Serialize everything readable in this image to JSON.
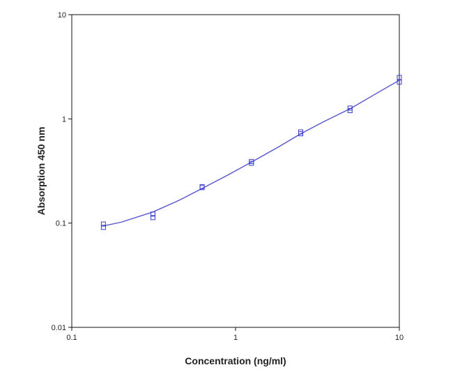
{
  "chart_data": {
    "type": "scatter",
    "scale": {
      "x": "log",
      "y": "log"
    },
    "xlabel": "Concentration (ng/ml)",
    "ylabel": "Absorption 450 nm",
    "xlim": [
      0.1,
      10
    ],
    "ylim": [
      0.01,
      10
    ],
    "x_ticks": [
      {
        "value": 0.1,
        "label": "0.1"
      },
      {
        "value": 1,
        "label": "1"
      },
      {
        "value": 10,
        "label": "10"
      }
    ],
    "y_ticks": [
      {
        "value": 0.01,
        "label": "0.01"
      },
      {
        "value": 0.1,
        "label": "0.1"
      },
      {
        "value": 1,
        "label": "1"
      },
      {
        "value": 10,
        "label": "10"
      }
    ],
    "grid": false,
    "legend": "none",
    "series": [
      {
        "type": "scatter",
        "marker": "square",
        "color": "#3b3bd6",
        "points": [
          {
            "x": 0.156,
            "y": 0.098
          },
          {
            "x": 0.156,
            "y": 0.091
          },
          {
            "x": 0.313,
            "y": 0.122
          },
          {
            "x": 0.313,
            "y": 0.113
          },
          {
            "x": 0.625,
            "y": 0.224
          },
          {
            "x": 0.625,
            "y": 0.219
          },
          {
            "x": 1.25,
            "y": 0.39
          },
          {
            "x": 1.25,
            "y": 0.375
          },
          {
            "x": 2.5,
            "y": 0.75
          },
          {
            "x": 2.5,
            "y": 0.72
          },
          {
            "x": 5,
            "y": 1.27
          },
          {
            "x": 5,
            "y": 1.2
          },
          {
            "x": 10,
            "y": 2.5
          },
          {
            "x": 10,
            "y": 2.25
          }
        ]
      },
      {
        "type": "line",
        "style": "fitted-curve",
        "color": "#5555cc",
        "points": [
          {
            "x": 0.156,
            "y": 0.094
          },
          {
            "x": 0.2,
            "y": 0.102
          },
          {
            "x": 0.313,
            "y": 0.128
          },
          {
            "x": 0.45,
            "y": 0.165
          },
          {
            "x": 0.625,
            "y": 0.215
          },
          {
            "x": 0.9,
            "y": 0.29
          },
          {
            "x": 1.25,
            "y": 0.385
          },
          {
            "x": 1.8,
            "y": 0.53
          },
          {
            "x": 2.5,
            "y": 0.72
          },
          {
            "x": 3.5,
            "y": 0.95
          },
          {
            "x": 5,
            "y": 1.25
          },
          {
            "x": 7,
            "y": 1.7
          },
          {
            "x": 10,
            "y": 2.35
          }
        ]
      }
    ]
  }
}
